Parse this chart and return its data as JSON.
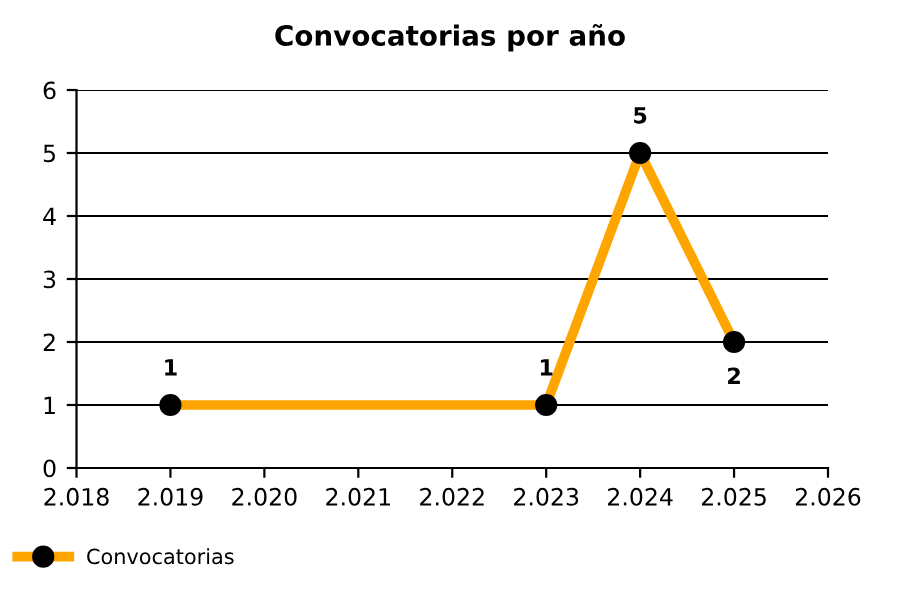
{
  "chart_data": {
    "type": "line",
    "title": "Convocatorias por año",
    "x": [
      2019,
      2023,
      2024,
      2025
    ],
    "series": [
      {
        "name": "Convocatorias",
        "color": "#ffa500",
        "values": [
          1,
          1,
          5,
          2
        ]
      }
    ],
    "xlim": [
      2018,
      2026
    ],
    "xticks": [
      {
        "value": 2018,
        "label": "2.018"
      },
      {
        "value": 2019,
        "label": "2.019"
      },
      {
        "value": 2020,
        "label": "2.020"
      },
      {
        "value": 2021,
        "label": "2.021"
      },
      {
        "value": 2022,
        "label": "2.022"
      },
      {
        "value": 2023,
        "label": "2.023"
      },
      {
        "value": 2024,
        "label": "2.024"
      },
      {
        "value": 2025,
        "label": "2.025"
      },
      {
        "value": 2026,
        "label": "2.026"
      }
    ],
    "ylim": [
      0,
      6
    ],
    "yticks": [
      0,
      1,
      2,
      3,
      4,
      5,
      6
    ],
    "grid": "y",
    "legend": "bottom left",
    "marker": "circle",
    "line_style": "solid",
    "data_labels": true
  }
}
